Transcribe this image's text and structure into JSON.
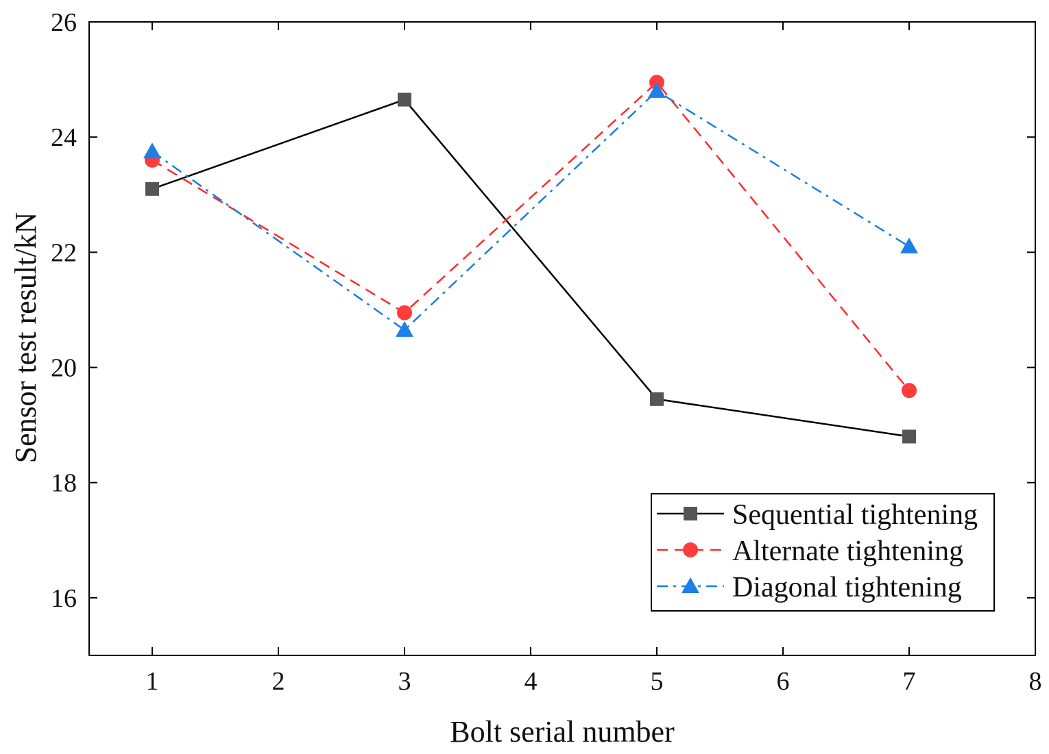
{
  "chart_data": {
    "type": "line",
    "xlabel": "Bolt serial number",
    "ylabel": "Sensor test result/kN",
    "xlim": [
      0.5,
      8
    ],
    "ylim": [
      15,
      26
    ],
    "xticks": [
      1,
      2,
      3,
      4,
      5,
      6,
      7,
      8
    ],
    "yticks": [
      16,
      18,
      20,
      22,
      24,
      26
    ],
    "grid": false,
    "legend_position": "bottom-right",
    "series": [
      {
        "name": "Sequential tightening",
        "color": "#000000",
        "marker_color": "#555555",
        "marker": "square",
        "line_style": "solid",
        "x": [
          1,
          3,
          5,
          7
        ],
        "y": [
          23.1,
          24.65,
          19.45,
          18.8
        ]
      },
      {
        "name": "Alternate tightening",
        "color": "#ff2a2a",
        "marker_color": "#ff3b3b",
        "marker": "circle",
        "line_style": "dash",
        "x": [
          1,
          3,
          5,
          7
        ],
        "y": [
          23.6,
          20.95,
          24.95,
          19.6
        ]
      },
      {
        "name": "Diagonal tightening",
        "color": "#1a7ee0",
        "marker_color": "#1f7fe6",
        "marker": "triangle",
        "line_style": "dashdot",
        "x": [
          1,
          3,
          5,
          7
        ],
        "y": [
          23.75,
          20.65,
          24.8,
          22.1
        ]
      }
    ]
  }
}
